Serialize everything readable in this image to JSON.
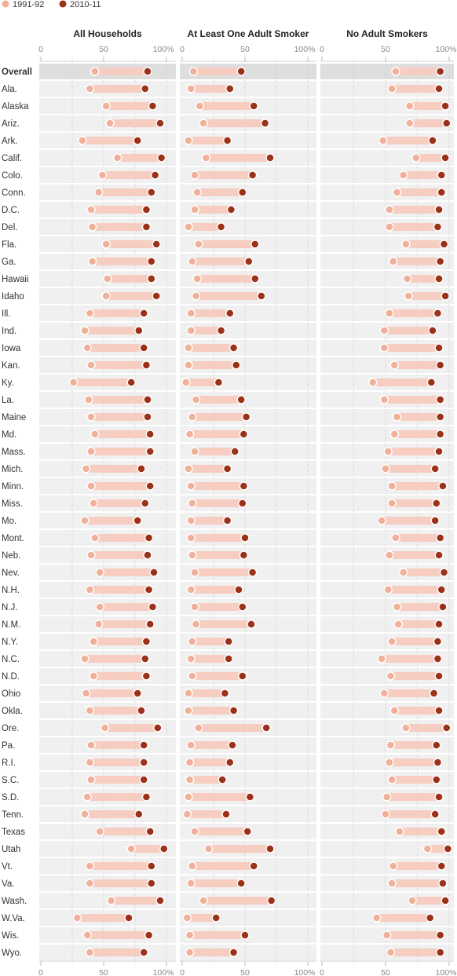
{
  "legend": {
    "items": [
      {
        "label": "1991-92",
        "color": "#f0b09a"
      },
      {
        "label": "2010-11",
        "color": "#9b3118"
      }
    ]
  },
  "colors": {
    "dot_1991": "#f0b09a",
    "dot_2010": "#9b3118",
    "bar": "#f6cdc0",
    "panel_bg": "#f0f0f0",
    "overall_bg": "#dedede",
    "label_text": "#333333",
    "axis_text": "#888888"
  },
  "chart_data": {
    "type": "dumbbell",
    "xlim": [
      0,
      100
    ],
    "tick_labels": [
      "0",
      "50",
      "100%"
    ],
    "categories": [
      "Overall",
      "Ala.",
      "Alaska",
      "Ariz.",
      "Ark.",
      "Calif.",
      "Colo.",
      "Conn.",
      "D.C.",
      "Del.",
      "Fla.",
      "Ga.",
      "Hawaii",
      "Idaho",
      "Ill.",
      "Ind.",
      "Iowa",
      "Kan.",
      "Ky.",
      "La.",
      "Maine",
      "Md.",
      "Mass.",
      "Mich.",
      "Minn.",
      "Miss.",
      "Mo.",
      "Mont.",
      "Neb.",
      "Nev.",
      "N.H.",
      "N.J.",
      "N.M.",
      "N.Y.",
      "N.C.",
      "N.D.",
      "Ohio",
      "Okla.",
      "Ore.",
      "Pa.",
      "R.I.",
      "S.C.",
      "S.D.",
      "Tenn.",
      "Texas",
      "Utah",
      "Vt.",
      "Va.",
      "Wash.",
      "W.Va.",
      "Wis.",
      "Wyo."
    ],
    "panels": [
      {
        "title": "All Households",
        "series": [
          {
            "name": "1991-92",
            "values": [
              43,
              39,
              52,
              55,
              33,
              61,
              49,
              46,
              40,
              41,
              52,
              41,
              53,
              52,
              39,
              35,
              37,
              40,
              26,
              38,
              40,
              43,
              40,
              36,
              40,
              42,
              35,
              43,
              40,
              47,
              39,
              47,
              46,
              42,
              35,
              42,
              36,
              39,
              51,
              40,
              39,
              40,
              37,
              35,
              47,
              72,
              39,
              39,
              56,
              29,
              37,
              39
            ]
          },
          {
            "name": "2010-11",
            "values": [
              85,
              83,
              89,
              95,
              77,
              96,
              91,
              88,
              84,
              84,
              92,
              88,
              88,
              92,
              82,
              78,
              82,
              84,
              72,
              85,
              85,
              87,
              87,
              80,
              87,
              83,
              77,
              86,
              85,
              90,
              86,
              89,
              87,
              84,
              83,
              84,
              77,
              80,
              93,
              82,
              82,
              82,
              84,
              78,
              87,
              98,
              88,
              88,
              95,
              70,
              86,
              82
            ]
          }
        ]
      },
      {
        "title": "At Least One Adult Smoker",
        "series": [
          {
            "name": "1991-92",
            "values": [
              9,
              7,
              14,
              17,
              5,
              19,
              10,
              12,
              10,
              5,
              13,
              8,
              12,
              11,
              7,
              7,
              5,
              5,
              3,
              11,
              8,
              6,
              10,
              5,
              7,
              8,
              7,
              7,
              8,
              10,
              7,
              10,
              11,
              8,
              7,
              8,
              5,
              5,
              13,
              7,
              6,
              6,
              5,
              4,
              10,
              21,
              8,
              7,
              17,
              4,
              6,
              6
            ]
          },
          {
            "name": "2010-11",
            "values": [
              47,
              38,
              57,
              66,
              36,
              70,
              56,
              48,
              39,
              31,
              58,
              53,
              58,
              63,
              38,
              31,
              41,
              43,
              29,
              47,
              51,
              49,
              42,
              36,
              49,
              48,
              36,
              50,
              49,
              56,
              45,
              48,
              55,
              37,
              37,
              48,
              34,
              41,
              67,
              40,
              38,
              32,
              54,
              35,
              52,
              70,
              57,
              47,
              71,
              27,
              50,
              41
            ]
          }
        ]
      },
      {
        "title": "No Adult Smokers",
        "series": [
          {
            "name": "1991-92",
            "values": [
              58,
              55,
              69,
              69,
              48,
              74,
              64,
              59,
              53,
              53,
              66,
              56,
              67,
              68,
              53,
              49,
              49,
              57,
              40,
              49,
              59,
              57,
              52,
              50,
              55,
              55,
              47,
              58,
              53,
              64,
              52,
              59,
              60,
              55,
              47,
              54,
              49,
              57,
              66,
              54,
              53,
              55,
              51,
              50,
              61,
              83,
              56,
              55,
              71,
              43,
              51,
              54
            ]
          },
          {
            "name": "2010-11",
            "values": [
              93,
              92,
              97,
              98,
              87,
              97,
              94,
              94,
              92,
              91,
              96,
              93,
              92,
              97,
              91,
              87,
              92,
              93,
              86,
              93,
              93,
              93,
              92,
              89,
              95,
              90,
              89,
              93,
              92,
              96,
              94,
              95,
              92,
              91,
              91,
              92,
              88,
              92,
              98,
              90,
              91,
              90,
              92,
              89,
              94,
              99,
              94,
              95,
              97,
              85,
              93,
              93
            ]
          }
        ]
      }
    ]
  }
}
